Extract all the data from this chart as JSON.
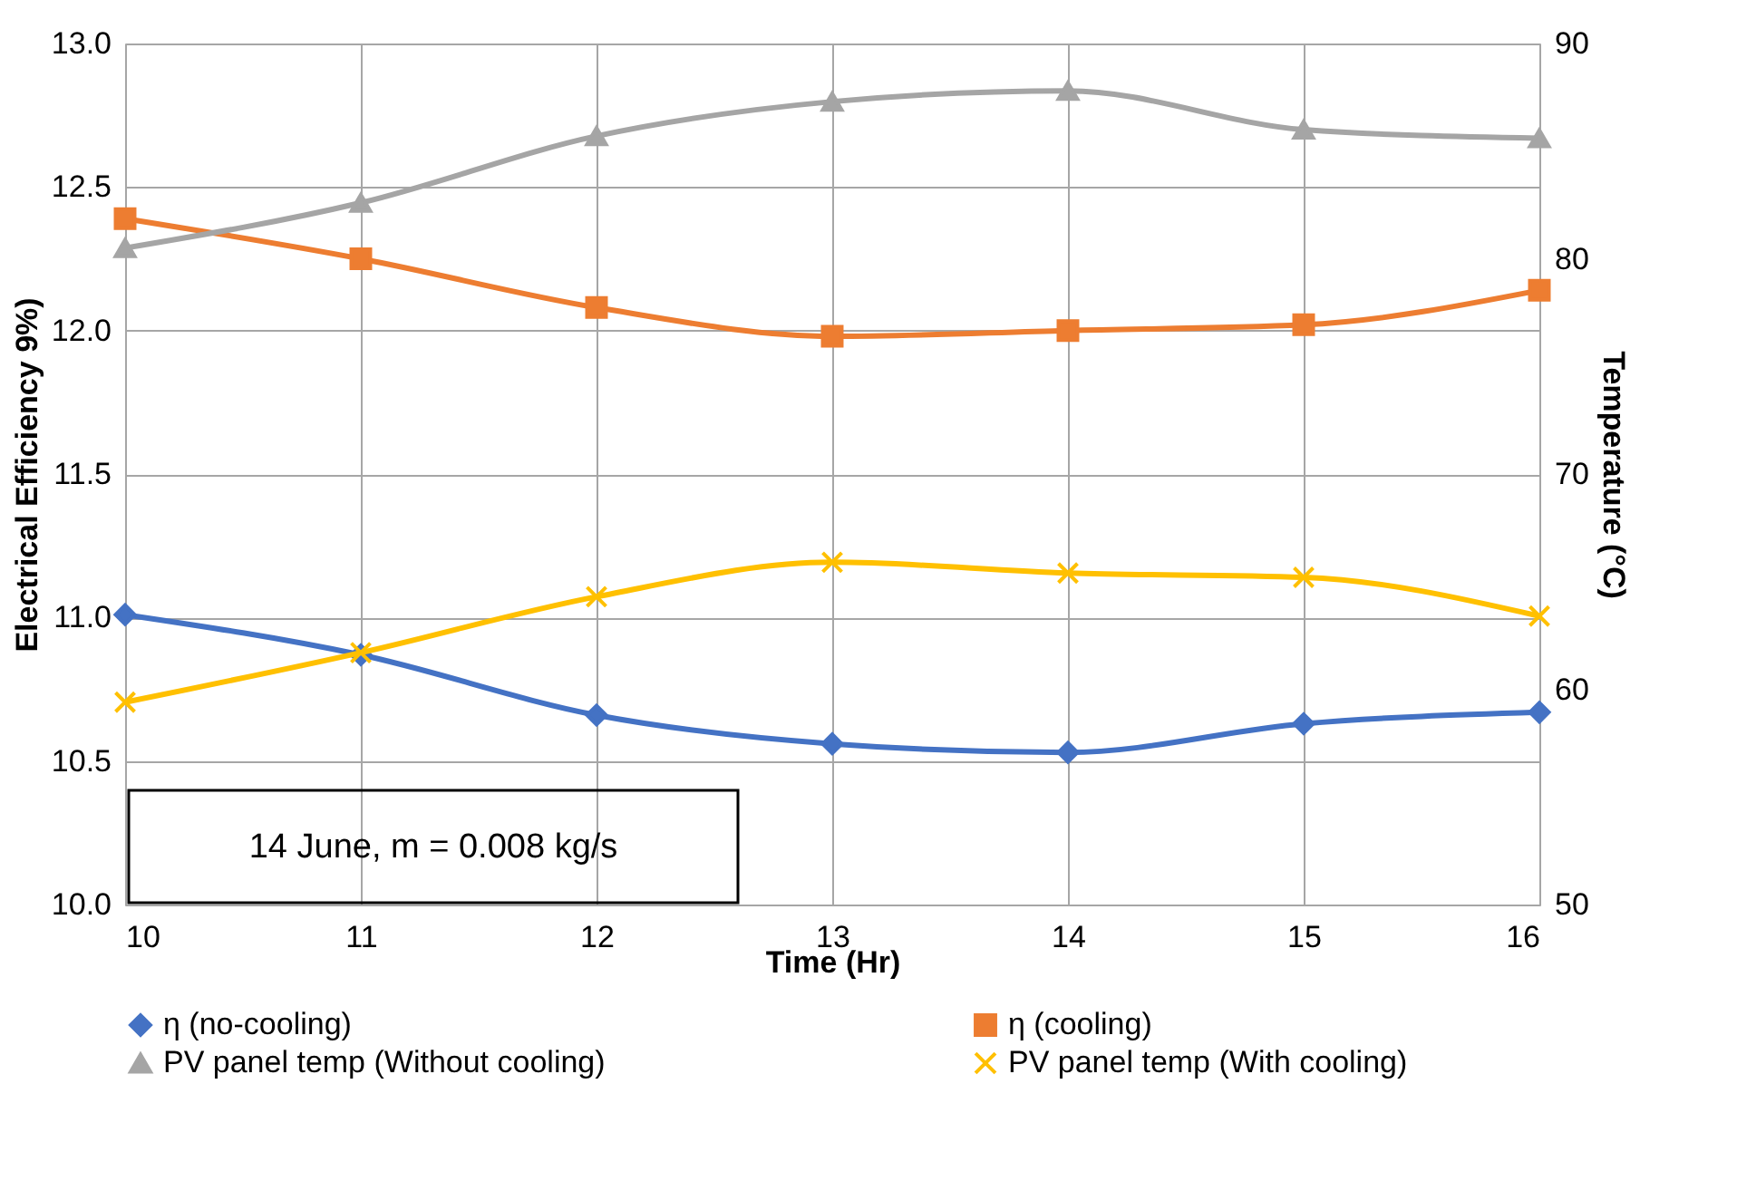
{
  "chart_data": {
    "type": "line",
    "xlabel": "Time (Hr)",
    "ylabel": "Electrical Efficiency 9%)",
    "y2label": "Temperature (°C)",
    "x": [
      10,
      11,
      12,
      13,
      14,
      15,
      16
    ],
    "series": [
      {
        "name": "η (no-cooling)",
        "color": "#4472c4",
        "marker": "diamond",
        "values": [
          11.01,
          10.87,
          10.66,
          10.56,
          10.53,
          10.63,
          10.67
        ]
      },
      {
        "name": "η (cooling)",
        "color": "#ed7d31",
        "marker": "square",
        "values": [
          12.39,
          12.25,
          12.08,
          11.98,
          12.0,
          12.02,
          12.14
        ]
      },
      {
        "name": "PV panel temp (Without cooling)",
        "color": "#a5a5a5",
        "marker": "triangle",
        "axis": "y2",
        "values": [
          80.5,
          82.6,
          85.7,
          87.3,
          87.8,
          86.0,
          85.6
        ]
      },
      {
        "name": "PV panel temp (With cooling)",
        "color": "#ffc000",
        "marker": "cross",
        "axis": "y2",
        "values": [
          59.4,
          61.7,
          64.3,
          65.9,
          65.4,
          65.2,
          63.4
        ]
      }
    ],
    "xlim": [
      10,
      16
    ],
    "xticks": [
      10,
      11,
      12,
      13,
      14,
      15,
      16
    ],
    "ylim": [
      10,
      13
    ],
    "yticks": [
      {
        "value": 10,
        "label": "10.0"
      },
      {
        "value": 10.5,
        "label": "10.5"
      },
      {
        "value": 11,
        "label": "11.0"
      },
      {
        "value": 11.5,
        "label": "11.5"
      },
      {
        "value": 12,
        "label": "12.0"
      },
      {
        "value": 12.5,
        "label": "12.5"
      },
      {
        "value": 13,
        "label": "13.0"
      }
    ],
    "y2lim": [
      50,
      90
    ],
    "y2ticks": [
      50,
      60,
      70,
      80,
      90
    ],
    "grid": true,
    "legend": "bottom",
    "line_style": "solid",
    "annotations": [
      "14 June, m = 0.008 kg/s"
    ]
  }
}
